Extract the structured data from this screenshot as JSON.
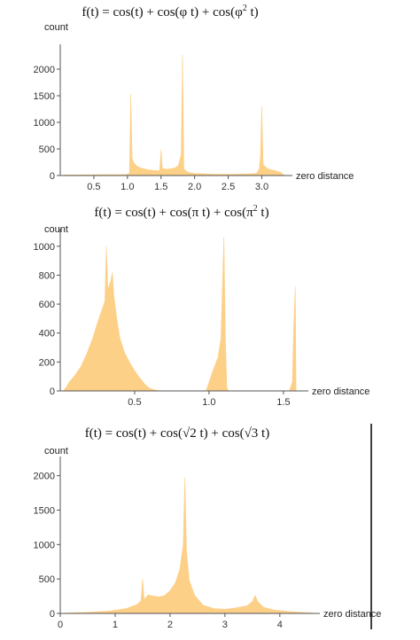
{
  "colors": {
    "fill": "#fdd088",
    "axis": "#555555",
    "divider": "#000000"
  },
  "chart_data": [
    {
      "type": "area",
      "title": "f(t) = cos(t) + cos(φ t) + cos(φ² t)",
      "title_parts": [
        "f(t) = cos(t) + cos(φ t) + cos(φ",
        "2",
        " t)"
      ],
      "xlabel": "zero distance",
      "ylabel": "count",
      "xlim": [
        0,
        3.35
      ],
      "ylim": [
        0,
        2300
      ],
      "xticks": [
        0.5,
        1.0,
        1.5,
        2.0,
        2.5,
        3.0
      ],
      "xtick_labels": [
        "0.5",
        "1.0",
        "1.5",
        "2.0",
        "2.5",
        "3.0"
      ],
      "yticks": [
        0,
        500,
        1000,
        1500,
        2000
      ],
      "ytick_labels": [
        "0",
        "500",
        "1000",
        "1500",
        "2000"
      ],
      "series": [
        {
          "values": [
            [
              0.05,
              10
            ],
            [
              0.3,
              12
            ],
            [
              0.6,
              15
            ],
            [
              0.9,
              18
            ],
            [
              1.0,
              22
            ],
            [
              1.03,
              40
            ],
            [
              1.05,
              1530
            ],
            [
              1.07,
              320
            ],
            [
              1.1,
              230
            ],
            [
              1.15,
              170
            ],
            [
              1.2,
              140
            ],
            [
              1.3,
              110
            ],
            [
              1.4,
              95
            ],
            [
              1.48,
              90
            ],
            [
              1.5,
              480
            ],
            [
              1.52,
              130
            ],
            [
              1.6,
              120
            ],
            [
              1.7,
              140
            ],
            [
              1.76,
              190
            ],
            [
              1.8,
              400
            ],
            [
              1.82,
              2270
            ],
            [
              1.84,
              120
            ],
            [
              1.9,
              60
            ],
            [
              2.0,
              40
            ],
            [
              2.3,
              25
            ],
            [
              2.6,
              25
            ],
            [
              2.8,
              30
            ],
            [
              2.92,
              40
            ],
            [
              2.96,
              120
            ],
            [
              2.98,
              350
            ],
            [
              3.0,
              1300
            ],
            [
              3.02,
              200
            ],
            [
              3.1,
              120
            ],
            [
              3.2,
              90
            ],
            [
              3.28,
              60
            ],
            [
              3.33,
              10
            ]
          ]
        }
      ]
    },
    {
      "type": "area",
      "title": "f(t) = cos(t) + cos(π t) + cos(π² t)",
      "title_parts": [
        "f(t) = cos(t) + cos(π t) + cos(π",
        "2",
        " t)"
      ],
      "xlabel": "zero distance",
      "ylabel": "count",
      "xlim": [
        0,
        1.62
      ],
      "ylim": [
        0,
        1060
      ],
      "xticks": [
        0.5,
        1.0,
        1.5
      ],
      "xtick_labels": [
        "0.5",
        "1.0",
        "1.5"
      ],
      "yticks": [
        0,
        200,
        400,
        600,
        800,
        1000
      ],
      "ytick_labels": [
        "0",
        "200",
        "400",
        "600",
        "800",
        "1000"
      ],
      "series": [
        {
          "values": [
            [
              0.02,
              0
            ],
            [
              0.04,
              25
            ],
            [
              0.06,
              60
            ],
            [
              0.1,
              110
            ],
            [
              0.14,
              170
            ],
            [
              0.18,
              260
            ],
            [
              0.22,
              370
            ],
            [
              0.25,
              470
            ],
            [
              0.28,
              560
            ],
            [
              0.3,
              620
            ],
            [
              0.31,
              1000
            ],
            [
              0.32,
              700
            ],
            [
              0.34,
              760
            ],
            [
              0.35,
              820
            ],
            [
              0.36,
              660
            ],
            [
              0.38,
              500
            ],
            [
              0.4,
              370
            ],
            [
              0.43,
              270
            ],
            [
              0.47,
              190
            ],
            [
              0.5,
              140
            ],
            [
              0.53,
              95
            ],
            [
              0.57,
              45
            ],
            [
              0.6,
              18
            ],
            [
              0.64,
              5
            ],
            [
              0.68,
              0
            ],
            [
              0.98,
              0
            ],
            [
              1.0,
              60
            ],
            [
              1.03,
              150
            ],
            [
              1.06,
              230
            ],
            [
              1.08,
              360
            ],
            [
              1.1,
              1060
            ],
            [
              1.11,
              360
            ],
            [
              1.12,
              20
            ],
            [
              1.13,
              0
            ],
            [
              1.54,
              0
            ],
            [
              1.56,
              60
            ],
            [
              1.57,
              470
            ],
            [
              1.58,
              720
            ],
            [
              1.585,
              0
            ]
          ]
        }
      ]
    },
    {
      "type": "area",
      "title": "f(t) = cos(t) + cos(√2 t) + cos(√3 t)",
      "xlabel": "zero distance",
      "ylabel": "count",
      "xlim": [
        0,
        4.6
      ],
      "ylim": [
        0,
        2150
      ],
      "xticks": [
        0,
        1,
        2,
        3,
        4
      ],
      "xtick_labels": [
        "0",
        "1",
        "2",
        "3",
        "4"
      ],
      "yticks": [
        0,
        500,
        1000,
        1500,
        2000
      ],
      "ytick_labels": [
        "0",
        "500",
        "1000",
        "1500",
        "2000"
      ],
      "series": [
        {
          "values": [
            [
              0.0,
              0
            ],
            [
              0.1,
              5
            ],
            [
              0.5,
              15
            ],
            [
              0.9,
              35
            ],
            [
              1.2,
              70
            ],
            [
              1.4,
              130
            ],
            [
              1.47,
              180
            ],
            [
              1.5,
              500
            ],
            [
              1.53,
              200
            ],
            [
              1.6,
              270
            ],
            [
              1.7,
              250
            ],
            [
              1.8,
              240
            ],
            [
              1.9,
              260
            ],
            [
              2.0,
              330
            ],
            [
              2.1,
              450
            ],
            [
              2.18,
              650
            ],
            [
              2.24,
              1000
            ],
            [
              2.27,
              1970
            ],
            [
              2.3,
              900
            ],
            [
              2.35,
              480
            ],
            [
              2.45,
              260
            ],
            [
              2.6,
              120
            ],
            [
              2.8,
              70
            ],
            [
              3.0,
              60
            ],
            [
              3.2,
              80
            ],
            [
              3.4,
              110
            ],
            [
              3.5,
              170
            ],
            [
              3.55,
              260
            ],
            [
              3.6,
              170
            ],
            [
              3.7,
              90
            ],
            [
              3.9,
              50
            ],
            [
              4.2,
              25
            ],
            [
              4.5,
              10
            ],
            [
              4.6,
              5
            ]
          ]
        }
      ]
    }
  ]
}
